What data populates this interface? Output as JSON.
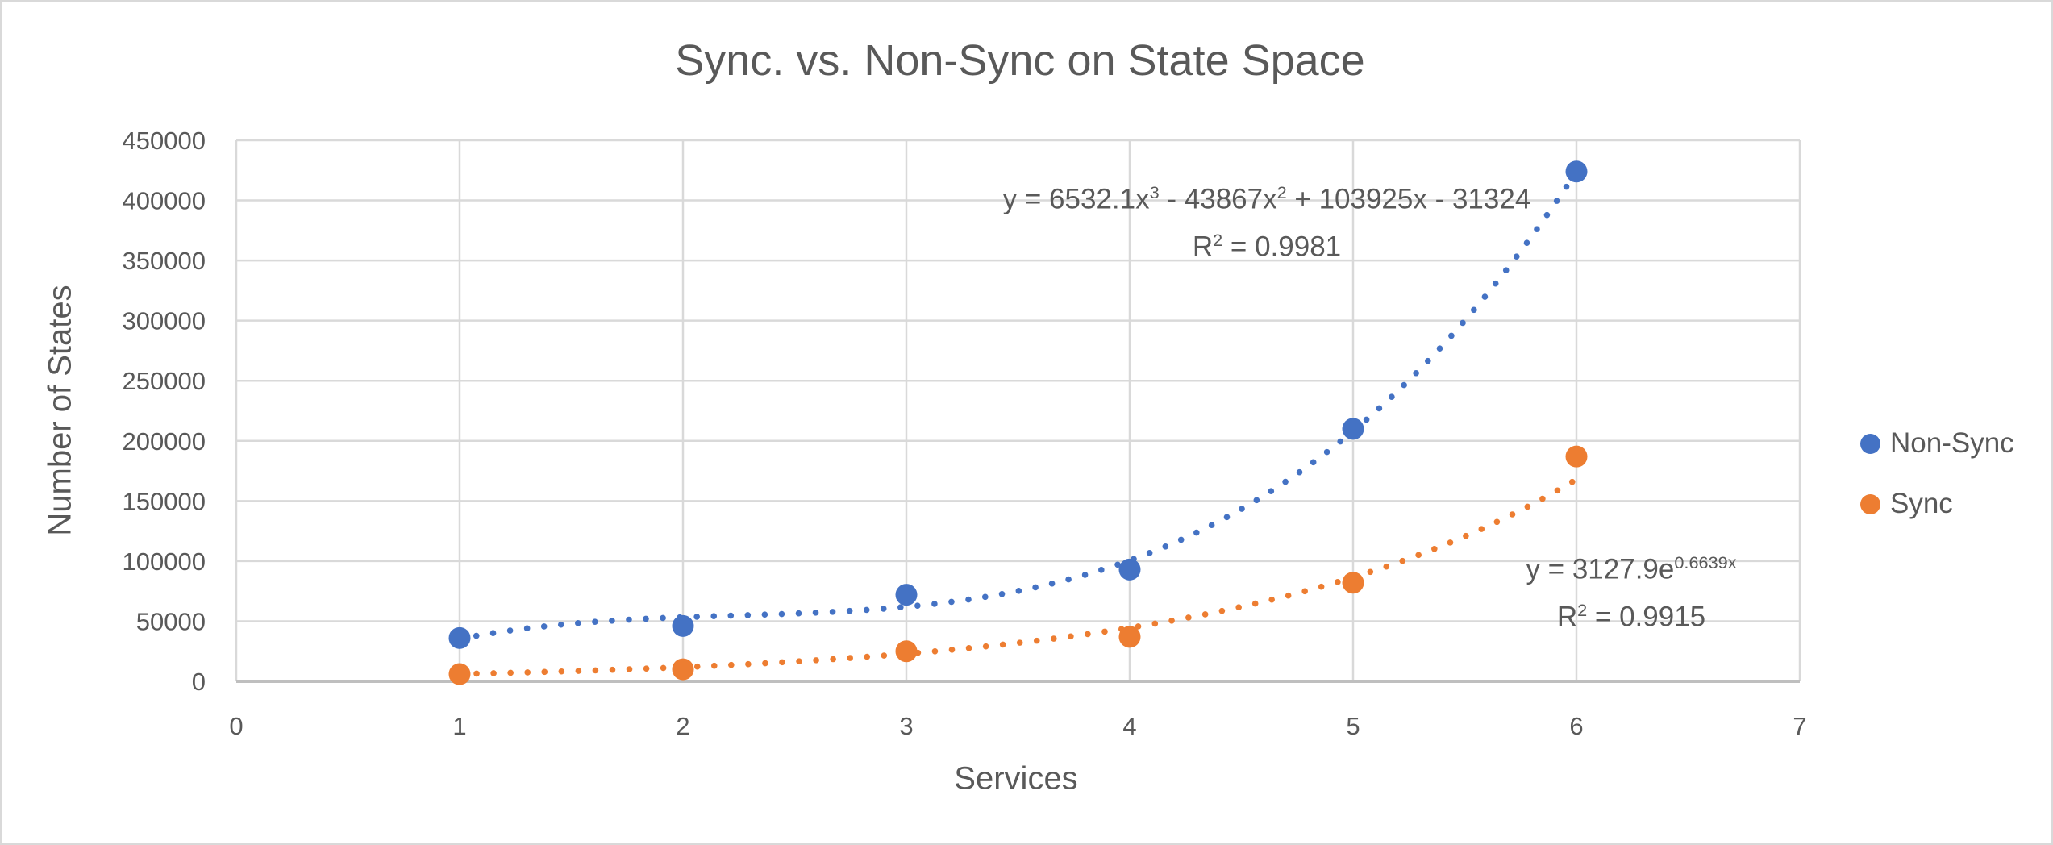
{
  "chart_data": {
    "type": "scatter",
    "title": "Sync. vs. Non-Sync on State Space",
    "xlabel": "Services",
    "ylabel": "Number of States",
    "xlim": [
      0,
      7
    ],
    "ylim": [
      0,
      450000
    ],
    "x_ticks": [
      0,
      1,
      2,
      3,
      4,
      5,
      6,
      7
    ],
    "y_ticks": [
      0,
      50000,
      100000,
      150000,
      200000,
      250000,
      300000,
      350000,
      400000,
      450000
    ],
    "grid": true,
    "legend_position": "right",
    "marker_style": "filled-circle",
    "trendline_style": "dotted",
    "series": [
      {
        "name": "Non-Sync",
        "color": "#4472C4",
        "x": [
          1,
          2,
          3,
          4,
          5,
          6
        ],
        "y": [
          36000,
          46000,
          72000,
          93000,
          210000,
          424000
        ],
        "trendline": {
          "type": "polynomial",
          "coefficients": {
            "x3": 6532.1,
            "x2": -43867,
            "x1": 103925,
            "x0": -31324
          },
          "range": [
            1,
            6
          ],
          "r_squared": 0.9981
        }
      },
      {
        "name": "Sync",
        "color": "#ED7D31",
        "x": [
          1,
          2,
          3,
          4,
          5,
          6
        ],
        "y": [
          6000,
          10000,
          25000,
          37000,
          82000,
          187000
        ],
        "trendline": {
          "type": "exponential",
          "coefficients": {
            "a": 3127.9,
            "b": 0.6639
          },
          "range": [
            1,
            6
          ],
          "r_squared": 0.9915
        }
      }
    ]
  },
  "annotations": {
    "eq_nonsync": {
      "p1": "y = 6532.1x",
      "sup1": "3",
      "p2": " - 43867x",
      "sup2": "2",
      "p3": " + 103925x - 31324",
      "r2_base": "R",
      "r2_sup": "2",
      "r2_value": " = 0.9981"
    },
    "eq_sync": {
      "p1": "y = 3127.9e",
      "sup1": "0.6639x",
      "r2_base": "R",
      "r2_sup": "2",
      "r2_value": " = 0.9915"
    }
  },
  "legend": {
    "items": [
      {
        "label": "Non-Sync",
        "color": "#4472C4"
      },
      {
        "label": "Sync",
        "color": "#ED7D31"
      }
    ]
  },
  "colors": {
    "text": "#595959",
    "gridline": "#D9D9D9",
    "axis_line": "#BFBFBF",
    "background": "#FFFFFF",
    "border": "#D9D9D9"
  }
}
